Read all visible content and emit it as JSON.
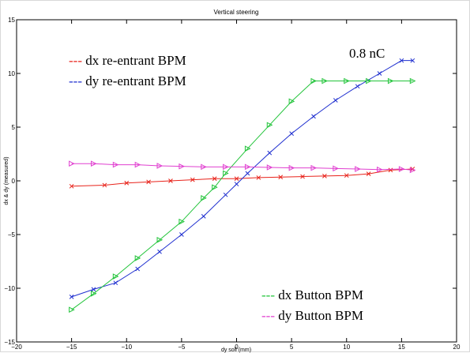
{
  "chart_data": {
    "type": "line",
    "title": "Vertical steering",
    "xlabel": "dy soll (mm)",
    "ylabel": "dx & dy (measured)",
    "xlim": [
      -20,
      20
    ],
    "ylim": [
      -15,
      15
    ],
    "xticks": [
      -20,
      -15,
      -10,
      -5,
      0,
      5,
      10,
      15,
      20
    ],
    "yticks": [
      -15,
      -10,
      -5,
      0,
      5,
      10,
      15
    ],
    "grid": false,
    "annotation": "0.8 nC",
    "legend_groups": [
      {
        "position": "top-left",
        "entries": [
          0,
          1
        ]
      },
      {
        "position": "bottom-right",
        "entries": [
          2,
          3
        ]
      }
    ],
    "series": [
      {
        "name": "dx re-entrant BPM",
        "color": "#e8231b",
        "marker": "x",
        "dash_label": "---",
        "points": [
          [
            -15,
            -0.5
          ],
          [
            -12,
            -0.4
          ],
          [
            -10,
            -0.2
          ],
          [
            -8,
            -0.1
          ],
          [
            -6,
            0.0
          ],
          [
            -4,
            0.1
          ],
          [
            -2,
            0.2
          ],
          [
            0,
            0.2
          ],
          [
            2,
            0.3
          ],
          [
            4,
            0.35
          ],
          [
            6,
            0.4
          ],
          [
            8,
            0.45
          ],
          [
            10,
            0.5
          ],
          [
            12,
            0.65
          ],
          [
            14,
            1.0
          ],
          [
            16,
            1.1
          ]
        ]
      },
      {
        "name": "dy re-entrant BPM",
        "color": "#1f2fcf",
        "marker": "x",
        "dash_label": "---",
        "points": [
          [
            -15,
            -10.8
          ],
          [
            -13,
            -10.1
          ],
          [
            -11,
            -9.5
          ],
          [
            -9,
            -8.2
          ],
          [
            -7,
            -6.6
          ],
          [
            -5,
            -5.0
          ],
          [
            -3,
            -3.3
          ],
          [
            -1,
            -1.3
          ],
          [
            0,
            -0.3
          ],
          [
            1,
            0.7
          ],
          [
            3,
            2.6
          ],
          [
            5,
            4.4
          ],
          [
            7,
            6.0
          ],
          [
            9,
            7.5
          ],
          [
            11,
            8.8
          ],
          [
            13,
            10.0
          ],
          [
            15,
            11.2
          ],
          [
            16,
            11.2
          ]
        ]
      },
      {
        "name": "dx Button BPM",
        "color": "#22c43a",
        "marker": "triangle-right",
        "dash_label": "---",
        "points": [
          [
            -15,
            -12.0
          ],
          [
            -13,
            -10.5
          ],
          [
            -11,
            -8.9
          ],
          [
            -9,
            -7.2
          ],
          [
            -7,
            -5.5
          ],
          [
            -5,
            -3.8
          ],
          [
            -3,
            -1.6
          ],
          [
            -2,
            -0.6
          ],
          [
            -1,
            0.7
          ],
          [
            1,
            3.0
          ],
          [
            3,
            5.2
          ],
          [
            5,
            7.4
          ],
          [
            7,
            9.3
          ],
          [
            8,
            9.3
          ],
          [
            10,
            9.3
          ],
          [
            12,
            9.3
          ],
          [
            14,
            9.3
          ],
          [
            16,
            9.3
          ]
        ]
      },
      {
        "name": "dy Button BPM",
        "color": "#e040d0",
        "marker": "triangle-right",
        "dash_label": "---",
        "points": [
          [
            -15,
            1.6
          ],
          [
            -13,
            1.6
          ],
          [
            -11,
            1.5
          ],
          [
            -9,
            1.5
          ],
          [
            -7,
            1.4
          ],
          [
            -5,
            1.35
          ],
          [
            -3,
            1.3
          ],
          [
            -1,
            1.3
          ],
          [
            1,
            1.3
          ],
          [
            3,
            1.25
          ],
          [
            5,
            1.2
          ],
          [
            7,
            1.2
          ],
          [
            9,
            1.15
          ],
          [
            11,
            1.1
          ],
          [
            13,
            1.05
          ],
          [
            15,
            1.1
          ],
          [
            16,
            1.0
          ]
        ]
      }
    ]
  }
}
